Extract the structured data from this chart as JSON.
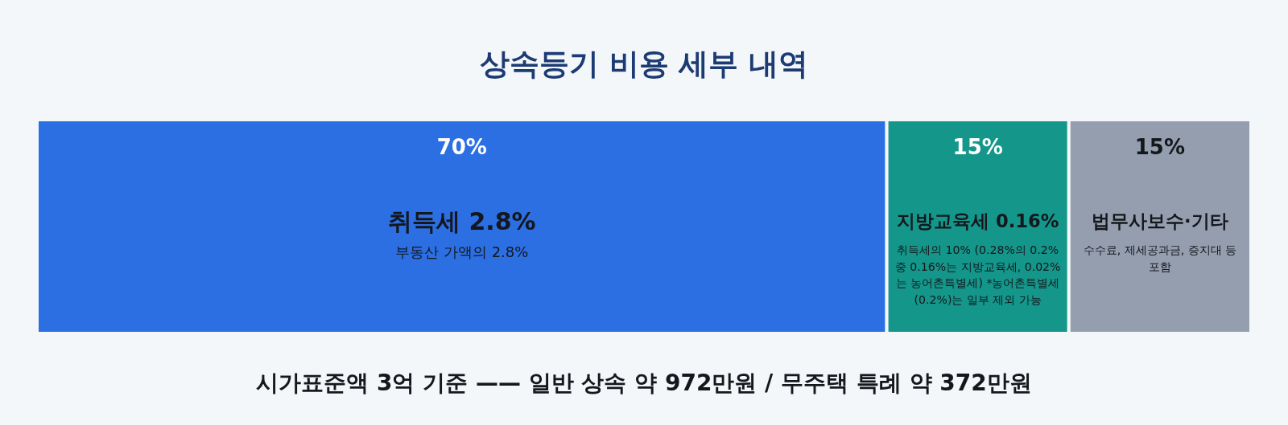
{
  "chart_data": {
    "type": "bar",
    "orientation": "horizontal",
    "stacked": true,
    "title": "상속등기 비용 세부 내역",
    "categories": [
      null
    ],
    "xlim": [
      0,
      100
    ],
    "tick_labels": false,
    "series": [
      {
        "name": "취득세 2.8%",
        "color": "#2b6fe3",
        "values": [
          70
        ],
        "value_labels": [
          "70%"
        ]
      },
      {
        "name": "지방교육세 0.16%",
        "color": "#14968a",
        "values": [
          15
        ],
        "value_labels": [
          "15%"
        ]
      },
      {
        "name": "법무사보수·기타",
        "color": "#949eae",
        "values": [
          15
        ],
        "value_labels": [
          "15%"
        ]
      }
    ],
    "annotations": [
      "부동산 가액의 2.8%",
      "취득세의 10% (0.28%의 0.2% 중 0.16%는 지방교육세, 0.02%는 농어촌특별세) *농어촌특별세(0.2%)는 일부 제외 가능",
      "수수료, 제세공과금, 증지대 등 포함",
      "시가표준액 3억 기준 —— 일반 상속 약 972만원 / 무주택 특례 약 372만원"
    ]
  }
}
